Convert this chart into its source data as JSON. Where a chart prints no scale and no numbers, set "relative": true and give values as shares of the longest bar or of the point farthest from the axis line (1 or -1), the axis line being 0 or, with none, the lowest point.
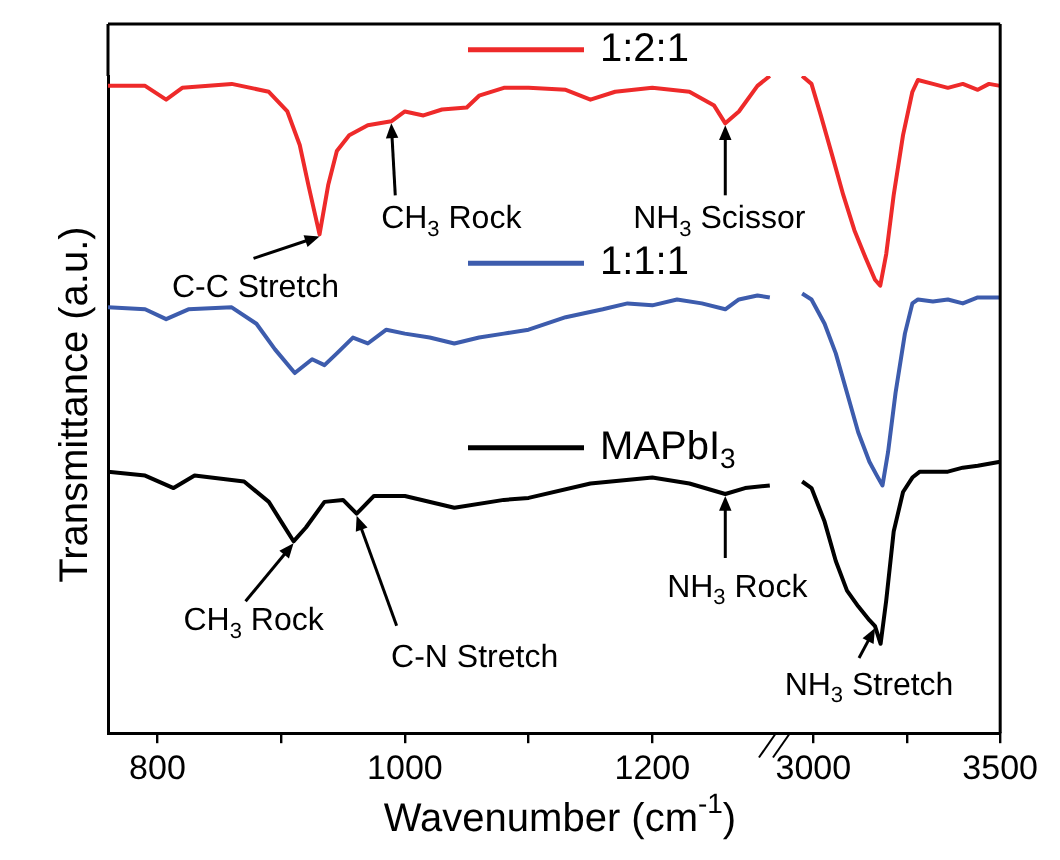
{
  "chart_data": [
    {
      "type": "line",
      "relative": true,
      "legend": "top",
      "xlabel": "Wavenumber (cm$^{-1}$)",
      "ylabel": "Transmittance (a.u.)",
      "xlim": [
        760,
        1300
      ],
      "xticks": [
        800,
        {
          "value": 900,
          "label": null
        },
        1000,
        {
          "value": 1100,
          "label": null
        },
        1200
      ],
      "series": [
        {
          "name": "1:2:1",
          "color": "#ee2a2a",
          "x": [
            760,
            790,
            807,
            820,
            860,
            890,
            905,
            915,
            922,
            931,
            938,
            945,
            955,
            970,
            989,
            1000,
            1015,
            1030,
            1050,
            1060,
            1080,
            1100,
            1130,
            1150,
            1170,
            1200,
            1230,
            1250,
            1259,
            1270,
            1285,
            1295
          ],
          "values": [
            0.985,
            0.985,
            0.964,
            0.982,
            0.988,
            0.976,
            0.946,
            0.895,
            0.834,
            0.759,
            0.834,
            0.886,
            0.91,
            0.925,
            0.931,
            0.946,
            0.94,
            0.949,
            0.952,
            0.97,
            0.982,
            0.982,
            0.979,
            0.964,
            0.976,
            0.982,
            0.976,
            0.955,
            0.928,
            0.946,
            0.985,
            1.0
          ]
        },
        {
          "name": "1:1:1",
          "color": "#3d5cad",
          "x": [
            760,
            790,
            807,
            825,
            860,
            880,
            895,
            911,
            925,
            935,
            945,
            958,
            970,
            985,
            1000,
            1020,
            1040,
            1060,
            1080,
            1100,
            1130,
            1160,
            1180,
            1200,
            1220,
            1240,
            1259,
            1270,
            1285,
            1295
          ],
          "values": [
            0.648,
            0.645,
            0.63,
            0.645,
            0.648,
            0.623,
            0.584,
            0.548,
            0.569,
            0.56,
            0.578,
            0.602,
            0.593,
            0.614,
            0.608,
            0.602,
            0.593,
            0.602,
            0.608,
            0.614,
            0.633,
            0.645,
            0.654,
            0.651,
            0.66,
            0.654,
            0.645,
            0.66,
            0.666,
            0.663
          ]
        },
        {
          "name": "MAPbI$_{3}$",
          "color": "#000000",
          "x": [
            760,
            790,
            813,
            830,
            870,
            890,
            900,
            910,
            920,
            935,
            950,
            961,
            975,
            1000,
            1040,
            1080,
            1100,
            1150,
            1200,
            1230,
            1259,
            1275,
            1295
          ],
          "values": [
            0.398,
            0.392,
            0.373,
            0.392,
            0.383,
            0.352,
            0.322,
            0.292,
            0.313,
            0.352,
            0.355,
            0.334,
            0.361,
            0.361,
            0.343,
            0.355,
            0.358,
            0.38,
            0.389,
            0.38,
            0.364,
            0.373,
            0.377
          ]
        }
      ],
      "annotations": [
        {
          "text": "C-C Stretch",
          "x": 931,
          "y": 0.759
        },
        {
          "text": "CH$_{3}$ Rock",
          "x": 989,
          "y": 0.931
        },
        {
          "text": "NH$_{3}$ Scissor",
          "x": 1259,
          "y": 0.928
        },
        {
          "text": "CH$_{3}$ Rock",
          "x": 910,
          "y": 0.292
        },
        {
          "text": "C-N Stretch",
          "x": 961,
          "y": 0.334
        },
        {
          "text": "NH$_{3}$ Rock",
          "x": 1259,
          "y": 0.364
        }
      ]
    },
    {
      "type": "line",
      "relative": true,
      "xlim": [
        2900,
        3500
      ],
      "xticks": [
        3000,
        {
          "value": 3250,
          "label": null
        },
        3500
      ],
      "series": [
        {
          "color": "#ee2a2a",
          "x": [
            2970,
            2995,
            3020,
            3050,
            3080,
            3110,
            3140,
            3165,
            3179,
            3195,
            3215,
            3240,
            3265,
            3280,
            3320,
            3360,
            3400,
            3440,
            3470,
            3500
          ],
          "values": [
            1.0,
            0.988,
            0.94,
            0.88,
            0.819,
            0.765,
            0.723,
            0.69,
            0.681,
            0.729,
            0.819,
            0.91,
            0.976,
            0.994,
            0.988,
            0.982,
            0.988,
            0.979,
            0.988,
            0.985
          ]
        },
        {
          "color": "#3d5cad",
          "x": [
            2970,
            2995,
            3030,
            3060,
            3090,
            3120,
            3150,
            3170,
            3185,
            3200,
            3220,
            3245,
            3265,
            3280,
            3320,
            3360,
            3400,
            3440,
            3500
          ],
          "values": [
            0.669,
            0.66,
            0.623,
            0.578,
            0.518,
            0.458,
            0.413,
            0.392,
            0.377,
            0.428,
            0.518,
            0.608,
            0.654,
            0.66,
            0.657,
            0.66,
            0.654,
            0.663,
            0.663
          ]
        },
        {
          "color": "#000000",
          "x": [
            2970,
            2995,
            3030,
            3060,
            3090,
            3120,
            3150,
            3165,
            3180,
            3195,
            3215,
            3240,
            3265,
            3285,
            3320,
            3360,
            3400,
            3440,
            3500
          ],
          "values": [
            0.383,
            0.373,
            0.322,
            0.262,
            0.217,
            0.193,
            0.172,
            0.163,
            0.136,
            0.202,
            0.307,
            0.367,
            0.389,
            0.398,
            0.398,
            0.398,
            0.404,
            0.407,
            0.413
          ]
        }
      ],
      "annotations": [
        {
          "text": "NH$_{3}$ Stretch",
          "x": 3165,
          "y": 0.163
        }
      ]
    }
  ]
}
